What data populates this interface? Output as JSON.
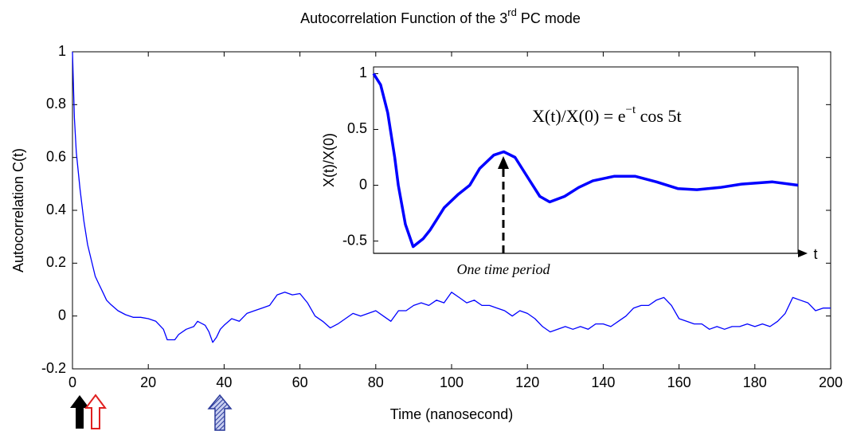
{
  "chart_data": [
    {
      "type": "line",
      "title": [
        "Autocorrelation Function of the 3",
        "rd",
        " PC mode"
      ],
      "xlabel": "Time (nanosecond)",
      "ylabel": "Autocorrelation C(t)",
      "color": "#0000ff",
      "xlim": [
        0,
        200
      ],
      "xticks": [
        0,
        20,
        40,
        60,
        80,
        100,
        120,
        140,
        160,
        180,
        200
      ],
      "ylim": [
        -0.2,
        1
      ],
      "yticks": [
        -0.2,
        0,
        0.2,
        0.4,
        0.6,
        0.8,
        1
      ],
      "x": [
        0,
        0.5,
        1,
        2,
        3,
        4,
        5,
        6,
        7,
        8,
        9,
        10,
        12,
        14,
        16,
        18,
        20,
        22,
        24,
        25,
        27,
        28,
        30,
        32,
        33,
        35,
        36,
        37,
        38,
        39,
        40,
        42,
        44,
        46,
        48,
        50,
        52,
        54,
        56,
        58,
        60,
        62,
        64,
        66,
        68,
        70,
        72,
        74,
        76,
        78,
        80,
        82,
        84,
        86,
        88,
        90,
        92,
        94,
        96,
        98,
        100,
        102,
        104,
        106,
        108,
        110,
        112,
        114,
        116,
        118,
        120,
        122,
        124,
        126,
        128,
        130,
        132,
        134,
        136,
        138,
        140,
        142,
        144,
        146,
        148,
        150,
        152,
        154,
        156,
        158,
        160,
        162,
        164,
        166,
        168,
        170,
        172,
        174,
        176,
        178,
        180,
        182,
        184,
        186,
        188,
        190,
        192,
        194,
        196,
        198,
        200
      ],
      "values": [
        1,
        0.75,
        0.62,
        0.48,
        0.36,
        0.27,
        0.21,
        0.15,
        0.12,
        0.09,
        0.06,
        0.045,
        0.02,
        0.005,
        -0.005,
        -0.005,
        -0.01,
        -0.02,
        -0.05,
        -0.09,
        -0.09,
        -0.07,
        -0.05,
        -0.04,
        -0.02,
        -0.035,
        -0.06,
        -0.1,
        -0.08,
        -0.05,
        -0.035,
        -0.01,
        -0.02,
        0.01,
        0.02,
        0.03,
        0.04,
        0.08,
        0.09,
        0.08,
        0.085,
        0.05,
        0,
        -0.02,
        -0.045,
        -0.03,
        -0.01,
        0.01,
        0,
        0.01,
        0.02,
        0,
        -0.02,
        0.02,
        0.02,
        0.04,
        0.05,
        0.04,
        0.06,
        0.05,
        0.09,
        0.07,
        0.05,
        0.06,
        0.04,
        0.04,
        0.03,
        0.02,
        0,
        0.02,
        0.01,
        -0.01,
        -0.04,
        -0.06,
        -0.05,
        -0.04,
        -0.05,
        -0.04,
        -0.05,
        -0.03,
        -0.03,
        -0.04,
        -0.02,
        0,
        0.03,
        0.04,
        0.04,
        0.06,
        0.07,
        0.04,
        -0.01,
        -0.02,
        -0.03,
        -0.03,
        -0.05,
        -0.04,
        -0.05,
        -0.04,
        -0.04,
        -0.03,
        -0.04,
        -0.03,
        -0.04,
        -0.02,
        0.01,
        0.07,
        0.06,
        0.05,
        0.02,
        0.03,
        0.03
      ]
    },
    {
      "type": "line",
      "ylabel": "X(t)/X(0)",
      "xlabel": "t",
      "formula": [
        "X(t)/X(0) = e",
        "−t",
        " cos 5t"
      ],
      "annotation": "One time period",
      "color": "#0000ff",
      "xlim": [
        0,
        6
      ],
      "ylim": [
        -0.61,
        1.06
      ],
      "yticks": [
        -0.5,
        0,
        0.5,
        1
      ],
      "x": [
        0,
        0.1,
        0.2,
        0.3,
        0.35,
        0.45,
        0.56,
        0.7,
        0.8,
        0.9,
        1.0,
        1.2,
        1.36,
        1.5,
        1.7,
        1.84,
        2.0,
        2.2,
        2.35,
        2.49,
        2.7,
        2.9,
        3.1,
        3.4,
        3.7,
        4.0,
        4.3,
        4.57,
        4.9,
        5.2,
        5.64,
        6.0
      ],
      "values": [
        1,
        0.9,
        0.65,
        0.25,
        0,
        -0.35,
        -0.55,
        -0.48,
        -0.4,
        -0.3,
        -0.2,
        -0.08,
        0,
        0.15,
        0.27,
        0.3,
        0.25,
        0.05,
        -0.1,
        -0.15,
        -0.1,
        -0.02,
        0.04,
        0.08,
        0.08,
        0.03,
        -0.03,
        -0.04,
        -0.02,
        0.01,
        0.03,
        0
      ]
    }
  ]
}
